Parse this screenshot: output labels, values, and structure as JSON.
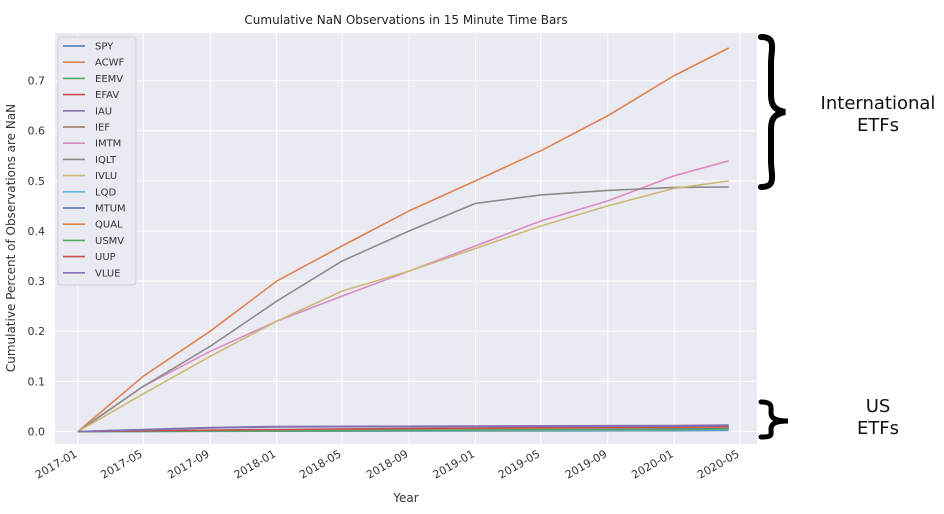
{
  "chart_data": {
    "type": "line",
    "title": "Cumulative NaN Observations in 15 Minute Time Bars",
    "xlabel": "Year",
    "ylabel": "Cumulative Percent of Observations are NaN",
    "x_ticks": [
      "2017-01",
      "2017-05",
      "2017-09",
      "2018-01",
      "2018-05",
      "2018-09",
      "2019-01",
      "2019-05",
      "2019-09",
      "2020-01",
      "2020-05"
    ],
    "y_ticks": [
      "0.0",
      "0.1",
      "0.2",
      "0.3",
      "0.4",
      "0.5",
      "0.6",
      "0.7"
    ],
    "xlim": [
      "2016-11-20",
      "2020-06-01"
    ],
    "ylim": [
      -0.025,
      0.795
    ],
    "grid": true,
    "legend_position": "top-left",
    "series": [
      {
        "name": "SPY",
        "color": "#4c72b0",
        "x": [
          "2017-01-01",
          "2018-01-01",
          "2019-01-01",
          "2020-01-01",
          "2020-04-10"
        ],
        "y": [
          0.0,
          0.0005,
          0.001,
          0.0015,
          0.002
        ]
      },
      {
        "name": "ACWF",
        "color": "#dd8452",
        "x": [
          "2017-01-01",
          "2017-05-01",
          "2017-09-01",
          "2018-01-01",
          "2018-05-01",
          "2018-09-01",
          "2019-01-01",
          "2019-05-01",
          "2019-09-01",
          "2020-01-01",
          "2020-04-10"
        ],
        "y": [
          0.0,
          0.11,
          0.2,
          0.3,
          0.37,
          0.44,
          0.5,
          0.56,
          0.63,
          0.71,
          0.765
        ]
      },
      {
        "name": "EEMV",
        "color": "#55a868",
        "x": [
          "2017-01-01",
          "2018-01-01",
          "2019-01-01",
          "2020-01-01",
          "2020-04-10"
        ],
        "y": [
          0.0,
          0.001,
          0.002,
          0.003,
          0.004
        ]
      },
      {
        "name": "EFAV",
        "color": "#c44e52",
        "x": [
          "2017-01-01",
          "2018-01-01",
          "2019-01-01",
          "2020-01-01",
          "2020-04-10"
        ],
        "y": [
          0.0,
          0.003,
          0.005,
          0.007,
          0.009
        ]
      },
      {
        "name": "IAU",
        "color": "#8172b3",
        "x": [
          "2017-01-01",
          "2017-09-01",
          "2018-01-01",
          "2019-01-01",
          "2020-01-01",
          "2020-04-10"
        ],
        "y": [
          0.0,
          0.008,
          0.01,
          0.011,
          0.012,
          0.013
        ]
      },
      {
        "name": "IEF",
        "color": "#937860",
        "x": [
          "2017-01-01",
          "2018-01-01",
          "2019-01-01",
          "2020-01-01",
          "2020-04-10"
        ],
        "y": [
          0.0,
          0.002,
          0.004,
          0.006,
          0.007
        ]
      },
      {
        "name": "IMTM",
        "color": "#da8bc3",
        "x": [
          "2017-01-01",
          "2017-05-01",
          "2017-09-01",
          "2018-01-01",
          "2018-05-01",
          "2018-09-01",
          "2019-01-01",
          "2019-05-01",
          "2019-09-01",
          "2020-01-01",
          "2020-04-10"
        ],
        "y": [
          0.0,
          0.09,
          0.16,
          0.22,
          0.27,
          0.32,
          0.37,
          0.42,
          0.46,
          0.51,
          0.54
        ]
      },
      {
        "name": "IQLT",
        "color": "#8c8c8c",
        "x": [
          "2017-01-01",
          "2017-05-01",
          "2017-09-01",
          "2018-01-01",
          "2018-05-01",
          "2018-09-01",
          "2019-01-01",
          "2019-05-01",
          "2019-09-01",
          "2020-01-01",
          "2020-04-10"
        ],
        "y": [
          0.0,
          0.09,
          0.17,
          0.26,
          0.34,
          0.4,
          0.455,
          0.472,
          0.481,
          0.487,
          0.488
        ]
      },
      {
        "name": "IVLU",
        "color": "#ccb974",
        "x": [
          "2017-01-01",
          "2017-05-01",
          "2017-09-01",
          "2018-01-01",
          "2018-05-01",
          "2018-09-01",
          "2019-01-01",
          "2019-05-01",
          "2019-09-01",
          "2020-01-01",
          "2020-04-10"
        ],
        "y": [
          0.0,
          0.075,
          0.15,
          0.22,
          0.28,
          0.32,
          0.365,
          0.41,
          0.45,
          0.485,
          0.5
        ]
      },
      {
        "name": "LQD",
        "color": "#64b5cd",
        "x": [
          "2017-01-01",
          "2018-01-01",
          "2019-01-01",
          "2020-01-01",
          "2020-04-10"
        ],
        "y": [
          0.0,
          0.001,
          0.002,
          0.003,
          0.003
        ]
      },
      {
        "name": "MTUM",
        "color": "#4c72b0",
        "x": [
          "2017-01-01",
          "2018-01-01",
          "2019-01-01",
          "2020-01-01",
          "2020-04-10"
        ],
        "y": [
          0.0,
          0.002,
          0.004,
          0.005,
          0.006
        ]
      },
      {
        "name": "QUAL",
        "color": "#dd8452",
        "x": [
          "2017-01-01",
          "2018-01-01",
          "2019-01-01",
          "2020-01-01",
          "2020-04-10"
        ],
        "y": [
          0.0,
          0.003,
          0.006,
          0.008,
          0.009
        ]
      },
      {
        "name": "USMV",
        "color": "#55a868",
        "x": [
          "2017-01-01",
          "2018-01-01",
          "2019-01-01",
          "2020-01-01",
          "2020-04-10"
        ],
        "y": [
          0.0,
          0.001,
          0.003,
          0.004,
          0.005
        ]
      },
      {
        "name": "UUP",
        "color": "#c44e52",
        "x": [
          "2017-01-01",
          "2018-01-01",
          "2019-01-01",
          "2020-01-01",
          "2020-04-10"
        ],
        "y": [
          0.0,
          0.004,
          0.007,
          0.009,
          0.01
        ]
      },
      {
        "name": "VLUE",
        "color": "#8172b3",
        "x": [
          "2017-01-01",
          "2017-09-01",
          "2018-01-01",
          "2019-01-01",
          "2020-01-01",
          "2020-04-10"
        ],
        "y": [
          0.0,
          0.007,
          0.009,
          0.01,
          0.011,
          0.012
        ]
      }
    ],
    "annotations": [
      {
        "text": [
          "International",
          "ETFs"
        ],
        "target_y_range": [
          0.48,
          0.79
        ]
      },
      {
        "text": [
          "US",
          "ETFs"
        ],
        "target_y_range": [
          -0.025,
          0.045
        ]
      }
    ]
  }
}
